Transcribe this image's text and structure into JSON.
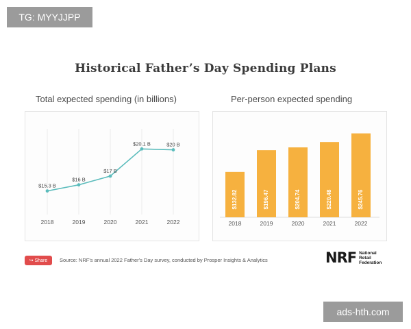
{
  "watermarks": {
    "top": "TG: MYYJJPP",
    "bottom": "ads-hth.com"
  },
  "main_title": "Historical Father’s Day Spending Plans",
  "share": {
    "label": "Share",
    "icon": "share-icon"
  },
  "source": "Source: NRF's annual 2022 Father's Day survey, conducted by Prosper Insights & Analytics",
  "logo": {
    "mark": "NRF",
    "text": "National\nRetail\nFederation"
  },
  "colors": {
    "line": "#5bbcbc",
    "bar": "#f6b13f",
    "share": "#e14c4c",
    "grid": "#ececec"
  },
  "chart_data": [
    {
      "type": "line",
      "title": "Total expected spending (in billions)",
      "x": [
        "2018",
        "2019",
        "2020",
        "2021",
        "2022"
      ],
      "values": [
        15.3,
        16,
        17,
        20.1,
        20
      ],
      "data_labels": [
        "$15.3 B",
        "$16 B",
        "$17 B",
        "$20.1 B",
        "$20 B"
      ],
      "ylim": [
        13,
        22
      ],
      "grid": "vertical"
    },
    {
      "type": "bar",
      "title": "Per-person expected spending",
      "categories": [
        "2018",
        "2019",
        "2020",
        "2021",
        "2022"
      ],
      "values": [
        132.82,
        196.47,
        204.74,
        220.48,
        245.76
      ],
      "data_labels": [
        "$132.82",
        "$196.47",
        "$204.74",
        "$220.48",
        "$245.76"
      ],
      "ylim": [
        0,
        265
      ]
    }
  ]
}
